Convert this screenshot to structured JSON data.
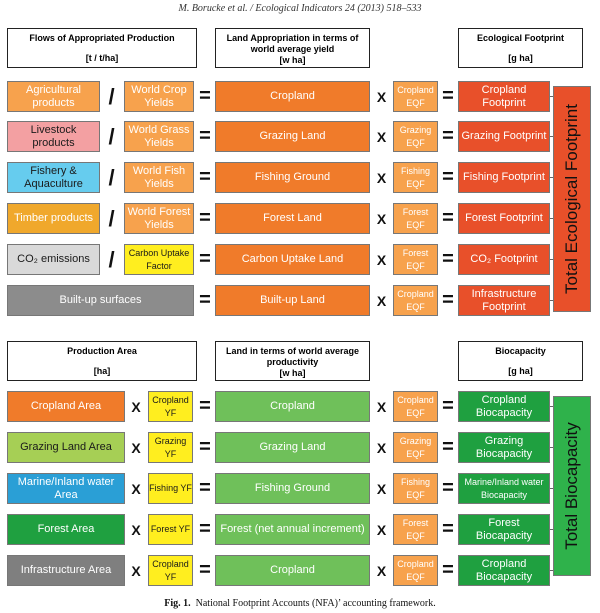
{
  "header": "M. Borucke et al. / Ecological Indicators 24 (2013) 518–533",
  "caption": {
    "fig": "Fig. 1.",
    "text": "National Footprint Accounts (NFA)’ accounting framework."
  },
  "colors": {
    "orange": "#f07b2a",
    "orange_light": "#f7a24d",
    "red": "#e8502a",
    "pink": "#f3a0a2",
    "cyan": "#66ccee",
    "gold": "#f0a82c",
    "gray": "#8c8c8c",
    "gray_light": "#d9d9d9",
    "green": "#2fb24b",
    "green_light": "#8fcf6e",
    "lime": "#a6cf55",
    "blue": "#2a9fd6",
    "dkgreen": "#1fa040",
    "slate": "#7f7f7f",
    "yellow": "#ffee1f",
    "green_mid": "#6fc05a"
  },
  "top": {
    "headers": [
      {
        "title": "Flows of Appropriated Production",
        "unit": "[t / t/ha]"
      },
      {
        "title": "Land Appropriation in terms of world average yield",
        "unit": "[w ha]"
      },
      {
        "title": "Ecological Footprint",
        "unit": "[g ha]"
      }
    ],
    "rows": [
      {
        "production": "Agricultural products",
        "op1": "/",
        "factor": "World Crop Yields",
        "land": "Cropland",
        "eqf": "Cropland EQF",
        "result": "Cropland Footprint"
      },
      {
        "production": "Livestock products",
        "op1": "/",
        "factor": "World Grass Yields",
        "land": "Grazing Land",
        "eqf": "Grazing EQF",
        "result": "Grazing Footprint"
      },
      {
        "production": "Fishery & Aquaculture",
        "op1": "/",
        "factor": "World Fish Yields",
        "land": "Fishing Ground",
        "eqf": "Fishing EQF",
        "result": "Fishing Footprint"
      },
      {
        "production": "Timber products",
        "op1": "/",
        "factor": "World Forest Yields",
        "land": "Forest Land",
        "eqf": "Forest EQF",
        "result": "Forest Footprint"
      },
      {
        "production": "CO₂ emissions",
        "op1": "/",
        "factor": "Carbon Uptake Factor",
        "land": "Carbon Uptake Land",
        "eqf": "Forest EQF",
        "result": "CO₂ Footprint"
      },
      {
        "production": "Built-up surfaces",
        "land": "Built-up Land",
        "eqf": "Cropland EQF",
        "result": "Infrastructure Footprint"
      }
    ],
    "total": "Total Ecological Footprint"
  },
  "bottom": {
    "headers": [
      {
        "title": "Production Area",
        "unit": "[ha]"
      },
      {
        "title": "Land in terms of world average productivity",
        "unit": "[w ha]"
      },
      {
        "title": "Biocapacity",
        "unit": "[g ha]"
      }
    ],
    "rows": [
      {
        "area": "Cropland Area",
        "yf": "Cropland YF",
        "land": "Cropland",
        "eqf": "Cropland EQF",
        "result": "Cropland Biocapacity"
      },
      {
        "area": "Grazing Land Area",
        "yf": "Grazing YF",
        "land": "Grazing Land",
        "eqf": "Grazing EQF",
        "result": "Grazing Biocapacity"
      },
      {
        "area": "Marine/Inland water Area",
        "yf": "Fishing YF",
        "land": "Fishing Ground",
        "eqf": "Fishing EQF",
        "result": "Marine/Inland water Biocapacity"
      },
      {
        "area": "Forest Area",
        "yf": "Forest YF",
        "land": "Forest (net annual increment)",
        "eqf": "Forest EQF",
        "result": "Forest Biocapacity"
      },
      {
        "area": "Infrastructure Area",
        "yf": "Cropland YF",
        "land": "Cropland",
        "eqf": "Cropland EQF",
        "result": "Cropland Biocapacity"
      }
    ],
    "total": "Total Biocapacity"
  },
  "operators": {
    "divide": "/",
    "times": "X",
    "equals": "="
  }
}
